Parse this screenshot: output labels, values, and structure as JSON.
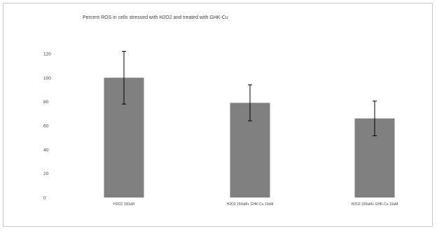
{
  "chart_data": {
    "type": "bar",
    "title": "Percent ROS in cells stressed with H2O2 and treated with GHK-Cu",
    "xlabel": "",
    "ylabel": "",
    "categories": [
      "H2O2 150uM",
      "H2O2 150uM+ GHK-Cu 10nM",
      "H2O2 150uM+ GHK-Cu 10uM"
    ],
    "values": [
      100,
      79,
      66
    ],
    "error": [
      22,
      15,
      14.5
    ],
    "ylim": [
      0,
      120
    ],
    "yticks": [
      "0",
      "20",
      "40",
      "60",
      "80",
      "100",
      "120"
    ],
    "bar_color": "#808080",
    "grid": false,
    "legend": "none"
  }
}
